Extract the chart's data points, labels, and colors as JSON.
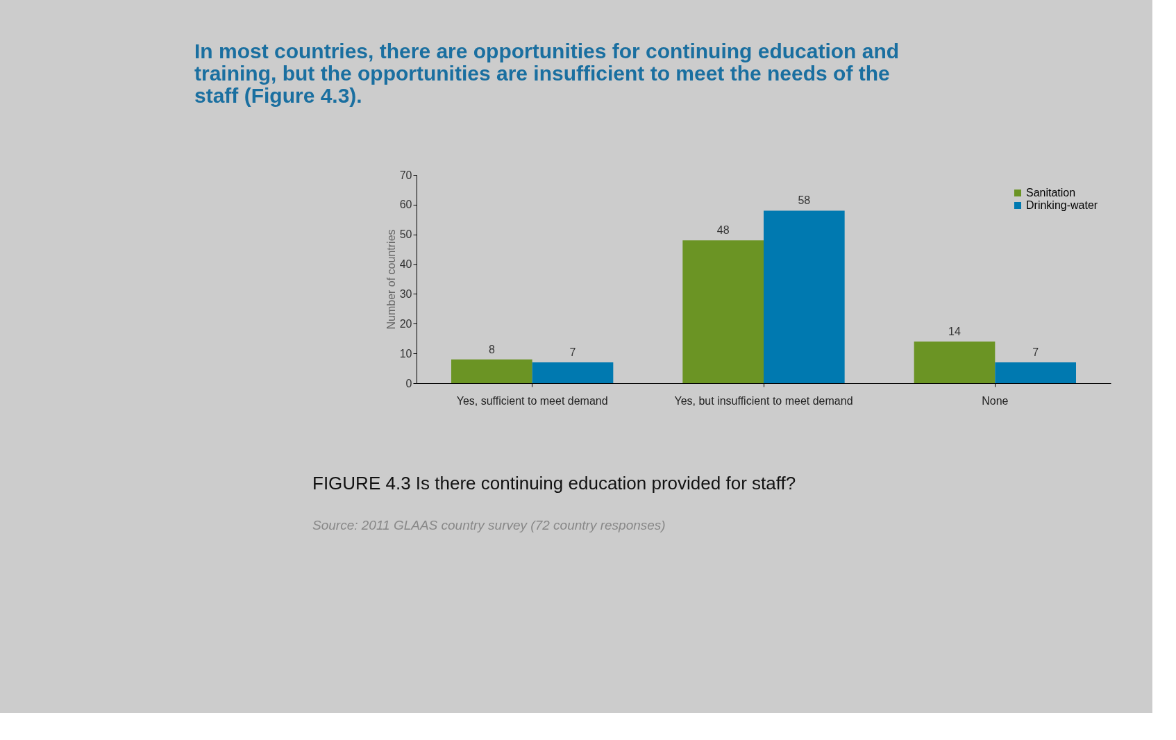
{
  "chart_data": {
    "type": "bar",
    "title": "In most countries, there are opportunities for continuing education and training, but the opportunities are insufficient to meet the needs of the staff (Figure 4.3).",
    "subtitle": "FIGURE 4.3 Is there continuing education provided for staff?",
    "ylabel": "Number of countries",
    "categories": [
      "Yes, sufficient to meet demand",
      "Yes, but insufficient to meet demand",
      "None"
    ],
    "series": [
      {
        "name": "Sanitation",
        "color": "#6b9424",
        "values": [
          8,
          48,
          14
        ]
      },
      {
        "name": "Drinking-water",
        "color": "#0079b0",
        "values": [
          7,
          58,
          7
        ]
      }
    ],
    "ylim": [
      0,
      70
    ],
    "yticks": [
      0,
      10,
      20,
      30,
      40,
      50,
      60,
      70
    ],
    "data_labels": true,
    "grid": false,
    "legend": "top right",
    "annotations": [
      "Source: 2011 GLAAS country survey (72 country responses)"
    ]
  }
}
